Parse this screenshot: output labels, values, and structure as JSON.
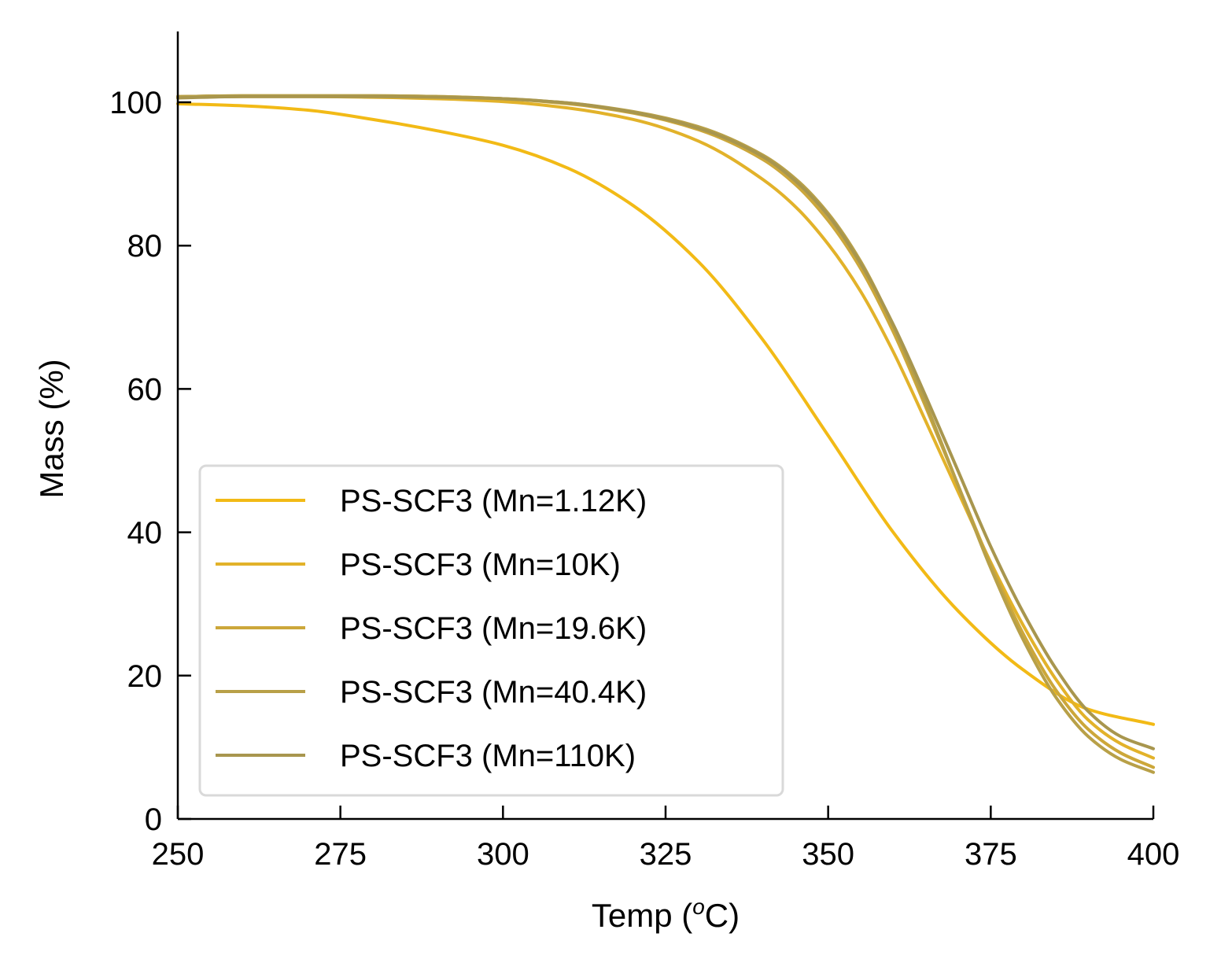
{
  "chart_data": {
    "type": "line",
    "xlabel": "Temp (",
    "xlabel_sup": "o",
    "xlabel_suffix": "C)",
    "ylabel": "Mass (%)",
    "xlim": [
      250,
      400
    ],
    "ylim": [
      0,
      110
    ],
    "xticks": [
      250,
      275,
      300,
      325,
      350,
      375,
      400
    ],
    "yticks": [
      0,
      20,
      40,
      60,
      80,
      100
    ],
    "grid": false,
    "legend_position": "lower-left",
    "series": [
      {
        "name": "PS-SCF3 (Mn=1.12K)",
        "color": "#F2BA16",
        "x": [
          250,
          260,
          270,
          280,
          290,
          300,
          310,
          320,
          330,
          340,
          350,
          360,
          370,
          380,
          390,
          400
        ],
        "y": [
          99.8,
          99.5,
          98.9,
          97.6,
          96.0,
          94.0,
          90.8,
          85.6,
          77.8,
          66.8,
          53.5,
          40.0,
          29.0,
          20.8,
          15.3,
          13.2
        ]
      },
      {
        "name": "PS-SCF3 (Mn=10K)",
        "color": "#E2B22A",
        "x": [
          250,
          260,
          270,
          280,
          290,
          300,
          310,
          320,
          330,
          340,
          345,
          350,
          355,
          360,
          365,
          370,
          375,
          380,
          385,
          390,
          395,
          400
        ],
        "y": [
          100.7,
          100.8,
          100.8,
          100.7,
          100.5,
          100.1,
          99.2,
          97.6,
          94.6,
          89.2,
          85.4,
          80.2,
          73.6,
          65.2,
          55.5,
          45.6,
          35.8,
          27.0,
          19.5,
          13.8,
          10.5,
          8.5
        ]
      },
      {
        "name": "PS-SCF3 (Mn=19.6K)",
        "color": "#CCA73A",
        "x": [
          250,
          260,
          270,
          280,
          290,
          300,
          310,
          320,
          330,
          340,
          345,
          350,
          355,
          360,
          365,
          370,
          375,
          380,
          385,
          390,
          395,
          400
        ],
        "y": [
          100.8,
          100.9,
          100.9,
          100.9,
          100.8,
          100.5,
          99.8,
          98.5,
          96.2,
          92.0,
          88.5,
          83.5,
          76.8,
          68.0,
          57.5,
          46.5,
          35.5,
          25.8,
          18.0,
          12.5,
          9.2,
          7.2
        ]
      },
      {
        "name": "PS-SCF3 (Mn=40.4K)",
        "color": "#B8A048",
        "x": [
          250,
          260,
          270,
          280,
          290,
          300,
          310,
          320,
          330,
          340,
          345,
          350,
          355,
          360,
          365,
          370,
          375,
          380,
          385,
          390,
          395,
          400
        ],
        "y": [
          100.8,
          100.9,
          100.9,
          100.9,
          100.8,
          100.5,
          99.9,
          98.7,
          96.6,
          92.6,
          89.3,
          84.5,
          77.8,
          68.8,
          58.0,
          46.5,
          35.0,
          25.0,
          17.0,
          11.5,
          8.3,
          6.5
        ]
      },
      {
        "name": "PS-SCF3 (Mn=110K)",
        "color": "#A8964E",
        "x": [
          250,
          260,
          270,
          280,
          290,
          300,
          310,
          320,
          330,
          340,
          345,
          350,
          355,
          360,
          365,
          370,
          375,
          380,
          385,
          390,
          395,
          400
        ],
        "y": [
          100.6,
          100.8,
          100.8,
          100.8,
          100.7,
          100.5,
          99.9,
          98.6,
          96.4,
          92.4,
          89.0,
          84.2,
          77.5,
          69.0,
          59.0,
          48.5,
          38.0,
          28.8,
          21.0,
          15.0,
          11.5,
          9.8
        ]
      }
    ]
  }
}
